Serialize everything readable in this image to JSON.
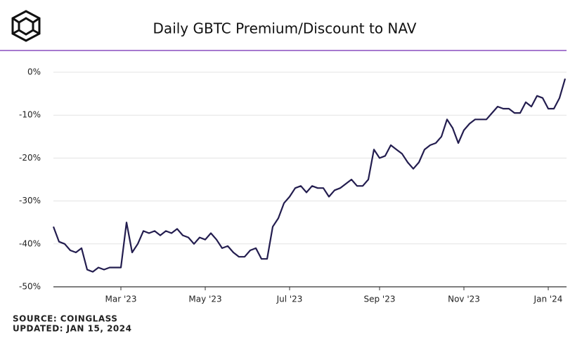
{
  "chart_data": {
    "type": "line",
    "title": "Daily GBTC Premium/Discount to NAV",
    "source": "SOURCE: COINGLASS",
    "updated": "UPDATED: JAN 15, 2024",
    "color": "#231d4f",
    "grid": true,
    "ylim": [
      -50,
      0
    ],
    "yticks": [
      {
        "value": 0,
        "label": "0%"
      },
      {
        "value": -10,
        "label": "-10%"
      },
      {
        "value": -20,
        "label": "-20%"
      },
      {
        "value": -30,
        "label": "-30%"
      },
      {
        "value": -40,
        "label": "-40%"
      },
      {
        "value": -50,
        "label": "-50%"
      }
    ],
    "categories": [
      null,
      null,
      null,
      null,
      null,
      null,
      null,
      null,
      null,
      null,
      null,
      null,
      "Mar '23",
      null,
      null,
      null,
      null,
      null,
      null,
      null,
      null,
      null,
      null,
      null,
      null,
      null,
      null,
      "May '23",
      null,
      null,
      null,
      null,
      null,
      null,
      null,
      null,
      null,
      null,
      null,
      null,
      null,
      null,
      "Jul '23",
      null,
      null,
      null,
      null,
      null,
      null,
      null,
      null,
      null,
      null,
      null,
      null,
      null,
      null,
      null,
      "Sep '23",
      null,
      null,
      null,
      null,
      null,
      null,
      null,
      null,
      null,
      null,
      null,
      null,
      null,
      null,
      "Nov '23",
      null,
      null,
      null,
      null,
      null,
      null,
      null,
      null,
      null,
      null,
      null,
      null,
      null,
      null,
      "Jan '24",
      null,
      null,
      null
    ],
    "values": [
      -36,
      -39.5,
      -40,
      -41.5,
      -42,
      -41,
      -46,
      -46.5,
      -45.5,
      -46,
      -45.5,
      -45.5,
      -45.5,
      -35,
      -42,
      -40,
      -37,
      -37.5,
      -37,
      -38,
      -37,
      -37.5,
      -36.5,
      -38,
      -38.5,
      -40,
      -38.5,
      -39,
      -37.5,
      -39,
      -41,
      -40.5,
      -42,
      -43,
      -43,
      -41.5,
      -41,
      -43.5,
      -43.5,
      -36,
      -34,
      -30.5,
      -29,
      -27,
      -26.5,
      -28,
      -26.5,
      -27,
      -27,
      -29,
      -27.5,
      -27,
      -26,
      -25,
      -26.5,
      -26.5,
      -25,
      -18,
      -20,
      -19.5,
      -17,
      -18,
      -19,
      -21,
      -22.5,
      -21,
      -18,
      -17,
      -16.5,
      -15,
      -11,
      -13,
      -16.5,
      -13.5,
      -12,
      -11,
      -11,
      -11,
      -9.5,
      -8,
      -8.5,
      -8.5,
      -9.5,
      -9.5,
      -7,
      -8,
      -5.5,
      -6,
      -8.5,
      -8.5,
      -6,
      -1.5
    ]
  }
}
